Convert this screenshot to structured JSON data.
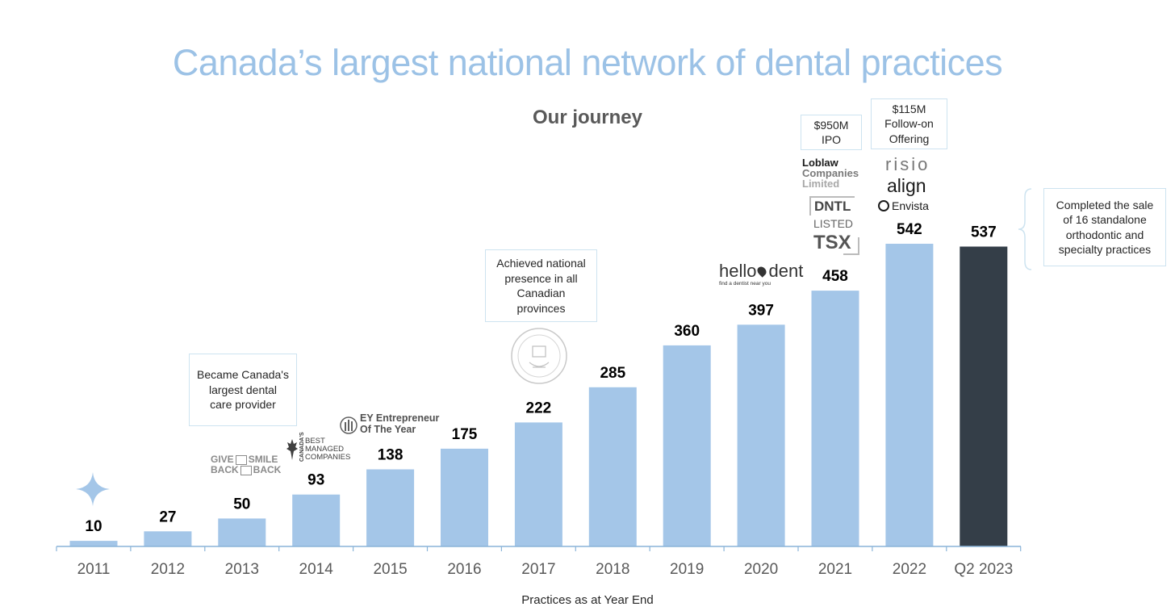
{
  "title": "Canada’s largest national network of dental practices",
  "subtitle": "Our journey",
  "chart_data": {
    "type": "bar",
    "categories": [
      "2011",
      "2012",
      "2013",
      "2014",
      "2015",
      "2016",
      "2017",
      "2018",
      "2019",
      "2020",
      "2021",
      "2022",
      "Q2 2023"
    ],
    "values": [
      10,
      27,
      50,
      93,
      138,
      175,
      222,
      285,
      360,
      397,
      458,
      542,
      537
    ],
    "xlabel": "Practices as at Year End",
    "ylabel": "",
    "ylim": [
      0,
      600
    ],
    "colors": {
      "default": "#a4c6e8",
      "highlight": "#343e48",
      "highlight_category": "Q2 2023",
      "label": "#000000",
      "tick": "#595959",
      "axis": "#8ab4d8"
    },
    "annotations": [
      "Became Canada's largest dental care provider",
      "Achieved national presence in all Canadian provinces",
      "$950M IPO",
      "$115M Follow-on Offering",
      "Completed the sale of 16 standalone orthodontic and specialty practices"
    ]
  },
  "callouts": {
    "c2013": [
      "Became Canada's",
      "largest dental",
      "care provider"
    ],
    "c2017": [
      "Achieved national",
      "presence in all",
      "Canadian",
      "provinces"
    ],
    "c2021": [
      "$950M",
      "IPO"
    ],
    "c2022": [
      "$115M",
      "Follow-on",
      "Offering"
    ],
    "cq2": [
      "Completed the sale",
      "of 16 standalone",
      "orthodontic and",
      "specialty practices"
    ]
  },
  "logos": {
    "givesmile_top": "GIVE",
    "givesmile_top2": "SMILE",
    "givesmile_bottom": "BACK",
    "givesmile_bottom2": "BACK",
    "bmc_side": "CANADA'S",
    "bmc1": "BEST",
    "bmc2": "MANAGED",
    "bmc3": "COMPANIES",
    "ey1": "EY Entrepreneur",
    "ey2": "Of The Year",
    "hello": "hello",
    "dent": "dent",
    "hello_tag": "find a dentist near you",
    "loblaw1": "Loblaw",
    "loblaw2": "Companies",
    "loblaw3": "Limited",
    "dntl": "DNTL",
    "listed": "LISTED",
    "tsx": "TSX",
    "risio": "risio",
    "align": "align",
    "envista": "Envista"
  }
}
